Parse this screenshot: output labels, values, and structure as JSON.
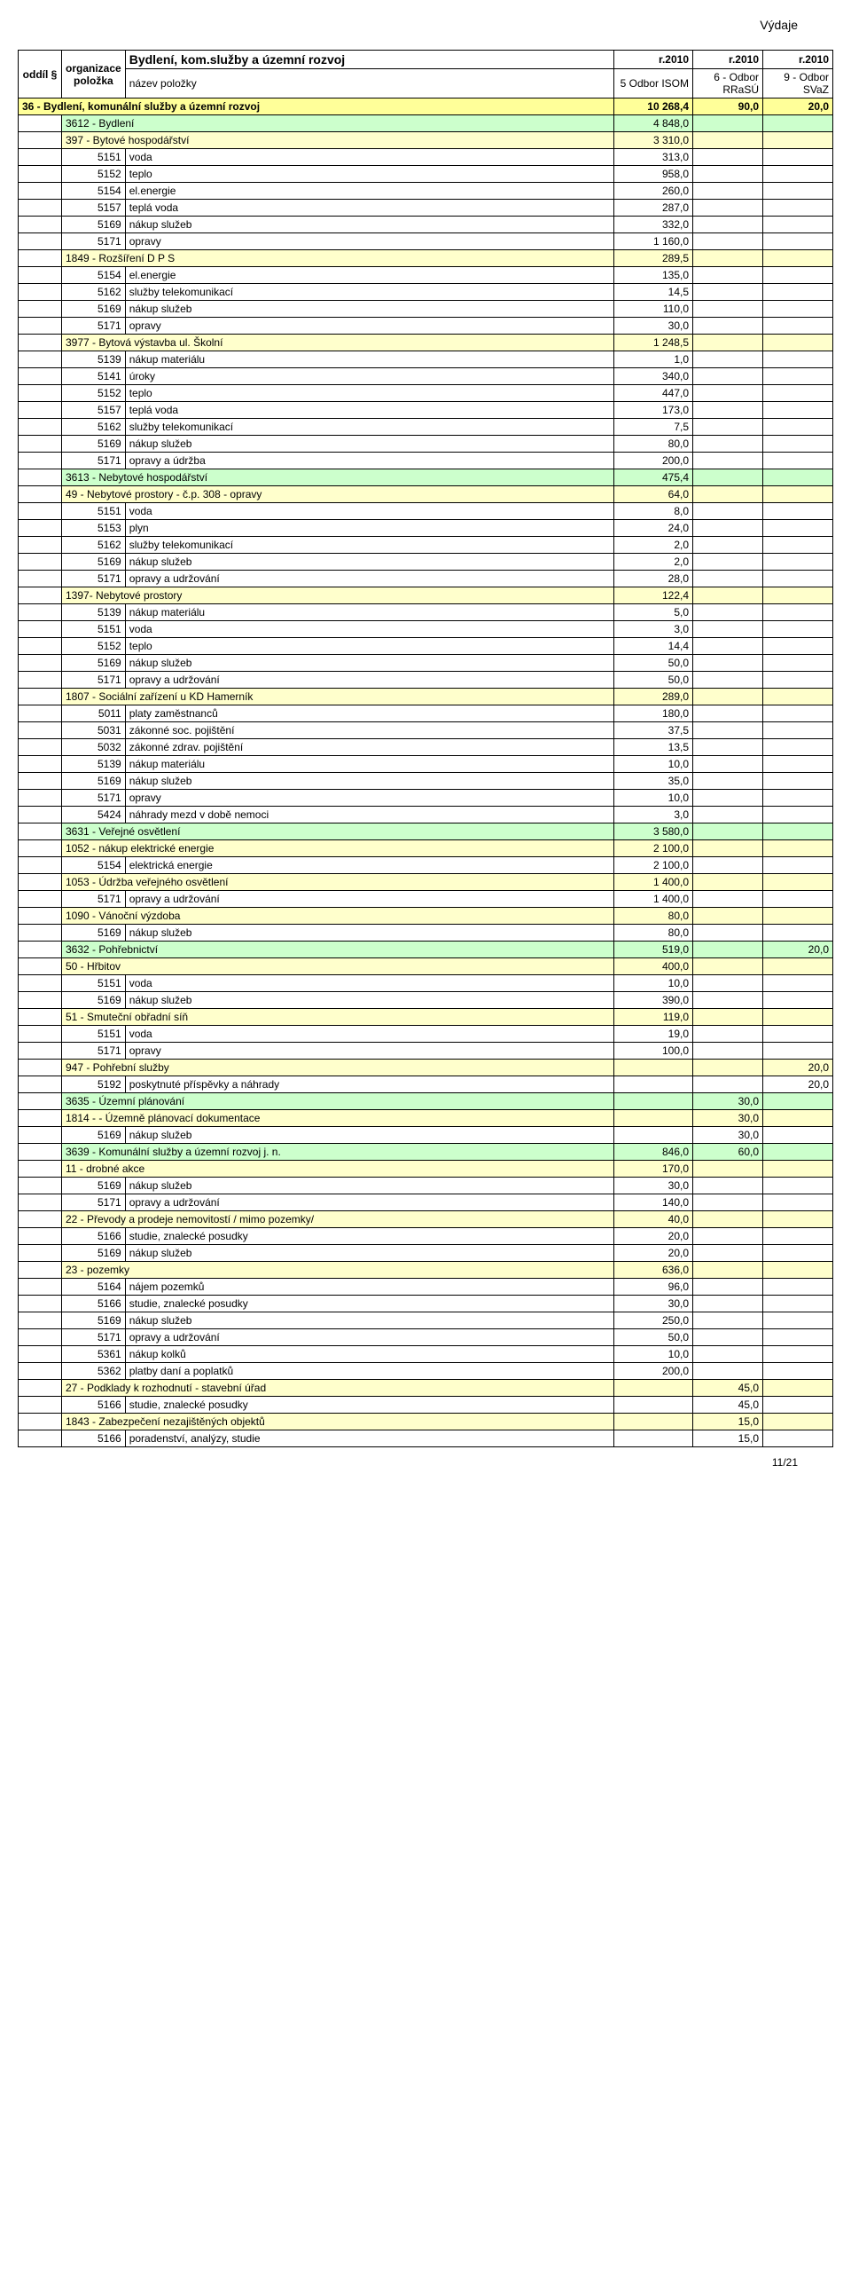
{
  "page": {
    "header_text": "Výdaje",
    "footer_text": "11/21"
  },
  "table": {
    "title": "Bydlení, kom.služby a územní rozvoj",
    "year1": "r.2010",
    "year2": "r.2010",
    "year3": "r.2010",
    "header": {
      "oddil": "oddíl §",
      "organizace": "organizace položka",
      "nazev": "název položky",
      "isom": "5 Odbor ISOM",
      "rrasu": "6 - Odbor RRaSÚ",
      "svaz": "9 - Odbor SVaZ"
    }
  },
  "rows": [
    {
      "type": "section",
      "name": "36 - Bydlení, komunální služby a územní rozvoj",
      "isom": "10 268,4",
      "rrasu": "90,0",
      "svaz": "20,0"
    },
    {
      "type": "group",
      "name": "3612 - Bydlení",
      "isom": "4 848,0",
      "rrasu": "",
      "svaz": ""
    },
    {
      "type": "sub",
      "name": "397 - Bytové hospodářství",
      "isom": "3 310,0",
      "rrasu": "",
      "svaz": ""
    },
    {
      "type": "line",
      "org": "5151",
      "name": "voda",
      "isom": "313,0"
    },
    {
      "type": "line",
      "org": "5152",
      "name": "teplo",
      "isom": "958,0"
    },
    {
      "type": "line",
      "org": "5154",
      "name": "el.energie",
      "isom": "260,0"
    },
    {
      "type": "line",
      "org": "5157",
      "name": "teplá voda",
      "isom": "287,0"
    },
    {
      "type": "line",
      "org": "5169",
      "name": "nákup služeb",
      "isom": "332,0"
    },
    {
      "type": "line",
      "org": "5171",
      "name": "opravy",
      "isom": "1 160,0"
    },
    {
      "type": "sub",
      "name": "1849 - Rozšíření D P S",
      "isom": "289,5",
      "rrasu": "",
      "svaz": ""
    },
    {
      "type": "line",
      "org": "5154",
      "name": "el.energie",
      "isom": "135,0"
    },
    {
      "type": "line",
      "org": "5162",
      "name": "služby telekomunikací",
      "isom": "14,5"
    },
    {
      "type": "line",
      "org": "5169",
      "name": "nákup služeb",
      "isom": "110,0"
    },
    {
      "type": "line",
      "org": "5171",
      "name": "opravy",
      "isom": "30,0"
    },
    {
      "type": "sub",
      "name": "3977 - Bytová výstavba ul. Školní",
      "isom": "1 248,5",
      "rrasu": "",
      "svaz": ""
    },
    {
      "type": "line",
      "org": "5139",
      "name": "nákup materiálu",
      "isom": "1,0"
    },
    {
      "type": "line",
      "org": "5141",
      "name": "úroky",
      "isom": "340,0"
    },
    {
      "type": "line",
      "org": "5152",
      "name": "teplo",
      "isom": "447,0"
    },
    {
      "type": "line",
      "org": "5157",
      "name": "teplá voda",
      "isom": "173,0"
    },
    {
      "type": "line",
      "org": "5162",
      "name": "služby telekomunikací",
      "isom": "7,5"
    },
    {
      "type": "line",
      "org": "5169",
      "name": "nákup služeb",
      "isom": "80,0"
    },
    {
      "type": "line",
      "org": "5171",
      "name": "opravy a údržba",
      "isom": "200,0"
    },
    {
      "type": "group",
      "name": "3613 - Nebytové hospodářství",
      "isom": "475,4",
      "rrasu": "",
      "svaz": ""
    },
    {
      "type": "sub",
      "name": "49 - Nebytové prostory - č.p. 308 - opravy",
      "isom": "64,0",
      "rrasu": "",
      "svaz": ""
    },
    {
      "type": "line",
      "org": "5151",
      "name": "voda",
      "isom": "8,0"
    },
    {
      "type": "line",
      "org": "5153",
      "name": "plyn",
      "isom": "24,0"
    },
    {
      "type": "line",
      "org": "5162",
      "name": "služby telekomunikací",
      "isom": "2,0"
    },
    {
      "type": "line",
      "org": "5169",
      "name": "nákup služeb",
      "isom": "2,0"
    },
    {
      "type": "line",
      "org": "5171",
      "name": "opravy a udržování",
      "isom": "28,0"
    },
    {
      "type": "sub",
      "name": "1397- Nebytové prostory",
      "isom": "122,4",
      "rrasu": "",
      "svaz": ""
    },
    {
      "type": "line",
      "org": "5139",
      "name": "nákup materiálu",
      "isom": "5,0"
    },
    {
      "type": "line",
      "org": "5151",
      "name": "voda",
      "isom": "3,0"
    },
    {
      "type": "line",
      "org": "5152",
      "name": "teplo",
      "isom": "14,4"
    },
    {
      "type": "line",
      "org": "5169",
      "name": "nákup služeb",
      "isom": "50,0"
    },
    {
      "type": "line",
      "org": "5171",
      "name": "opravy a udržování",
      "isom": "50,0"
    },
    {
      "type": "sub",
      "name": "1807 - Sociální zařízení u KD Hamerník",
      "isom": "289,0",
      "rrasu": "",
      "svaz": ""
    },
    {
      "type": "line",
      "org": "5011",
      "name": "platy zaměstnanců",
      "isom": "180,0"
    },
    {
      "type": "line",
      "org": "5031",
      "name": "zákonné soc. pojištění",
      "isom": "37,5"
    },
    {
      "type": "line",
      "org": "5032",
      "name": "zákonné zdrav. pojištění",
      "isom": "13,5"
    },
    {
      "type": "line",
      "org": "5139",
      "name": "nákup materiálu",
      "isom": "10,0"
    },
    {
      "type": "line",
      "org": "5169",
      "name": "nákup služeb",
      "isom": "35,0"
    },
    {
      "type": "line",
      "org": "5171",
      "name": "opravy",
      "isom": "10,0"
    },
    {
      "type": "line",
      "org": "5424",
      "name": "náhrady mezd v době nemoci",
      "isom": "3,0"
    },
    {
      "type": "group",
      "name": "3631 - Veřejné osvětlení",
      "isom": "3 580,0",
      "rrasu": "",
      "svaz": ""
    },
    {
      "type": "sub",
      "name": "1052 - nákup elektrické energie",
      "isom": "2 100,0",
      "rrasu": "",
      "svaz": ""
    },
    {
      "type": "line",
      "org": "5154",
      "name": "elektrická energie",
      "isom": "2 100,0"
    },
    {
      "type": "sub",
      "name": "1053 - Údržba veřejného osvětlení",
      "isom": "1 400,0",
      "rrasu": "",
      "svaz": ""
    },
    {
      "type": "line",
      "org": "5171",
      "name": "opravy a udržování",
      "isom": "1 400,0"
    },
    {
      "type": "sub",
      "name": "1090 - Vánoční výzdoba",
      "isom": "80,0",
      "rrasu": "",
      "svaz": ""
    },
    {
      "type": "line",
      "org": "5169",
      "name": "nákup služeb",
      "isom": "80,0"
    },
    {
      "type": "group",
      "name": "3632 - Pohřebnictví",
      "isom": "519,0",
      "rrasu": "",
      "svaz": "20,0"
    },
    {
      "type": "sub",
      "name": "50 - Hřbitov",
      "isom": "400,0",
      "rrasu": "",
      "svaz": ""
    },
    {
      "type": "line",
      "org": "5151",
      "name": "voda",
      "isom": "10,0"
    },
    {
      "type": "line",
      "org": "5169",
      "name": "nákup služeb",
      "isom": "390,0"
    },
    {
      "type": "sub",
      "name": "51 - Smuteční obřadní síň",
      "isom": "119,0",
      "rrasu": "",
      "svaz": ""
    },
    {
      "type": "line",
      "org": "5151",
      "name": "voda",
      "isom": "19,0"
    },
    {
      "type": "line",
      "org": "5171",
      "name": "opravy",
      "isom": "100,0"
    },
    {
      "type": "sub",
      "name": "947 - Pohřební služby",
      "isom": "",
      "rrasu": "",
      "svaz": "20,0"
    },
    {
      "type": "line",
      "org": "5192",
      "name": "poskytnuté příspěvky a náhrady",
      "isom": "",
      "svaz": "20,0"
    },
    {
      "type": "group",
      "name": "3635 - Územní plánování",
      "isom": "",
      "rrasu": "30,0",
      "svaz": ""
    },
    {
      "type": "sub",
      "name": "1814 -  - Územně plánovací dokumentace",
      "isom": "",
      "rrasu": "30,0",
      "svaz": ""
    },
    {
      "type": "line",
      "org": "5169",
      "name": "nákup služeb",
      "isom": "",
      "rrasu": "30,0"
    },
    {
      "type": "group",
      "name": "3639 - Komunální služby a územní rozvoj j. n.",
      "isom": "846,0",
      "rrasu": "60,0",
      "svaz": ""
    },
    {
      "type": "sub",
      "name": "11 - drobné akce",
      "isom": "170,0",
      "rrasu": "",
      "svaz": ""
    },
    {
      "type": "line",
      "org": "5169",
      "name": "nákup služeb",
      "isom": "30,0"
    },
    {
      "type": "line",
      "org": "5171",
      "name": "opravy a udržování",
      "isom": "140,0"
    },
    {
      "type": "sub",
      "name": "22 - Převody a prodeje nemovitostí / mimo pozemky/",
      "isom": "40,0",
      "rrasu": "",
      "svaz": ""
    },
    {
      "type": "line",
      "org": "5166",
      "name": "studie, znalecké posudky",
      "isom": "20,0"
    },
    {
      "type": "line",
      "org": "5169",
      "name": "nákup služeb",
      "isom": "20,0"
    },
    {
      "type": "sub",
      "name": "23 - pozemky",
      "isom": "636,0",
      "rrasu": "",
      "svaz": ""
    },
    {
      "type": "line",
      "org": "5164",
      "name": "nájem pozemků",
      "isom": "96,0"
    },
    {
      "type": "line",
      "org": "5166",
      "name": "studie, znalecké posudky",
      "isom": "30,0"
    },
    {
      "type": "line",
      "org": "5169",
      "name": "nákup služeb",
      "isom": "250,0"
    },
    {
      "type": "line",
      "org": "5171",
      "name": "opravy a udržování",
      "isom": "50,0"
    },
    {
      "type": "line",
      "org": "5361",
      "name": "nákup kolků",
      "isom": "10,0"
    },
    {
      "type": "line",
      "org": "5362",
      "name": "platby daní a poplatků",
      "isom": "200,0"
    },
    {
      "type": "sub",
      "name": "27 - Podklady k rozhodnutí - stavební úřad",
      "isom": "",
      "rrasu": "45,0",
      "svaz": ""
    },
    {
      "type": "line",
      "org": "5166",
      "name": "studie, znalecké posudky",
      "isom": "",
      "rrasu": "45,0"
    },
    {
      "type": "sub",
      "name": "1843 - Zabezpečení nezajištěných objektů",
      "isom": "",
      "rrasu": "15,0",
      "svaz": ""
    },
    {
      "type": "line",
      "org": "5166",
      "name": "poradenství, analýzy, studie",
      "isom": "",
      "rrasu": "15,0"
    }
  ]
}
